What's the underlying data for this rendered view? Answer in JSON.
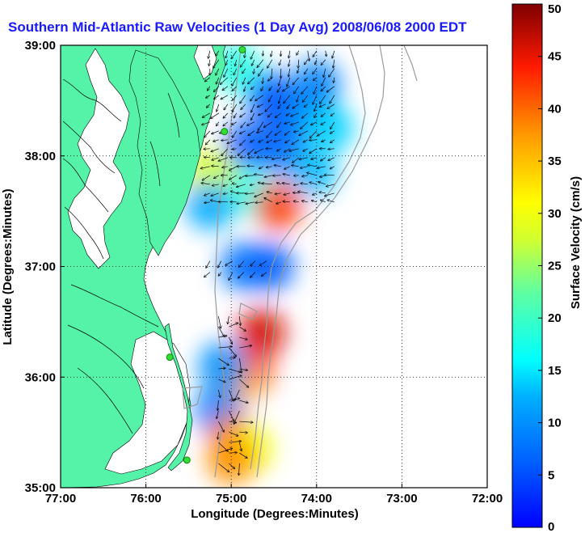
{
  "title": "Southern Mid-Atlantic Raw Velocities (1 Day Avg) 2008/06/08 2000 EDT",
  "axes": {
    "x_label": "Longitude (Degrees:Minutes)",
    "y_label": "Latitude (Degrees:Minutes)",
    "x_ticks": [
      {
        "value": -77,
        "label": "77:00"
      },
      {
        "value": -76,
        "label": "76:00"
      },
      {
        "value": -75,
        "label": "75:00"
      },
      {
        "value": -74,
        "label": "74:00"
      },
      {
        "value": -73,
        "label": "73:00"
      },
      {
        "value": -72,
        "label": "72:00"
      }
    ],
    "y_ticks": [
      {
        "value": 39,
        "label": "39:00"
      },
      {
        "value": 38,
        "label": "38:00"
      },
      {
        "value": 37,
        "label": "37:00"
      },
      {
        "value": 36,
        "label": "36:00"
      },
      {
        "value": 35,
        "label": "35:00"
      }
    ],
    "lon_range": [
      -77,
      -72
    ],
    "lat_range": [
      35,
      39
    ],
    "grid": "dotted"
  },
  "colorbar": {
    "label": "Surface Velocity (cm/s)",
    "range": [
      0,
      50
    ],
    "ticks": [
      0,
      5,
      10,
      15,
      20,
      25,
      30,
      35,
      40,
      45,
      50
    ],
    "colormap": "jet"
  },
  "colors": {
    "land": "#55f3a8",
    "water": "#ffffff",
    "bathymetry": "#9a9a9a",
    "station": "#33dd33",
    "title": "#1a1aff"
  },
  "stations": [
    {
      "lon": -74.87,
      "lat": 38.96
    },
    {
      "lon": -75.08,
      "lat": 38.22
    },
    {
      "lon": -75.72,
      "lat": 36.18
    },
    {
      "lon": -75.52,
      "lat": 35.25
    }
  ],
  "velocity_patches": [
    {
      "lon": -74.55,
      "lat": 38.55,
      "speed": 6
    },
    {
      "lon": -74.35,
      "lat": 38.35,
      "speed": 5
    },
    {
      "lon": -74.8,
      "lat": 38.1,
      "speed": 6
    },
    {
      "lon": -74.4,
      "lat": 38.05,
      "speed": 7
    },
    {
      "lon": -74.1,
      "lat": 38.4,
      "speed": 10
    },
    {
      "lon": -74.0,
      "lat": 38.65,
      "speed": 9
    },
    {
      "lon": -73.85,
      "lat": 38.25,
      "speed": 14
    },
    {
      "lon": -74.05,
      "lat": 37.85,
      "speed": 13
    },
    {
      "lon": -75.05,
      "lat": 37.7,
      "speed": 22
    },
    {
      "lon": -74.7,
      "lat": 37.65,
      "speed": 17
    },
    {
      "lon": -75.25,
      "lat": 37.85,
      "speed": 28
    },
    {
      "lon": -74.45,
      "lat": 37.55,
      "speed": 42
    },
    {
      "lon": -74.95,
      "lat": 38.8,
      "speed": 18
    },
    {
      "lon": -75.25,
      "lat": 37.55,
      "speed": 12
    },
    {
      "lon": -74.85,
      "lat": 37.0,
      "speed": 8
    },
    {
      "lon": -74.55,
      "lat": 37.0,
      "speed": 6
    },
    {
      "lon": -74.65,
      "lat": 36.4,
      "speed": 46
    },
    {
      "lon": -74.8,
      "lat": 36.05,
      "speed": 44
    },
    {
      "lon": -74.95,
      "lat": 35.95,
      "speed": 35
    },
    {
      "lon": -75.1,
      "lat": 36.1,
      "speed": 10
    },
    {
      "lon": -75.15,
      "lat": 35.7,
      "speed": 9
    },
    {
      "lon": -74.98,
      "lat": 35.45,
      "speed": 40
    },
    {
      "lon": -74.8,
      "lat": 35.35,
      "speed": 30
    },
    {
      "lon": -75.0,
      "lat": 35.25,
      "speed": 38
    }
  ]
}
